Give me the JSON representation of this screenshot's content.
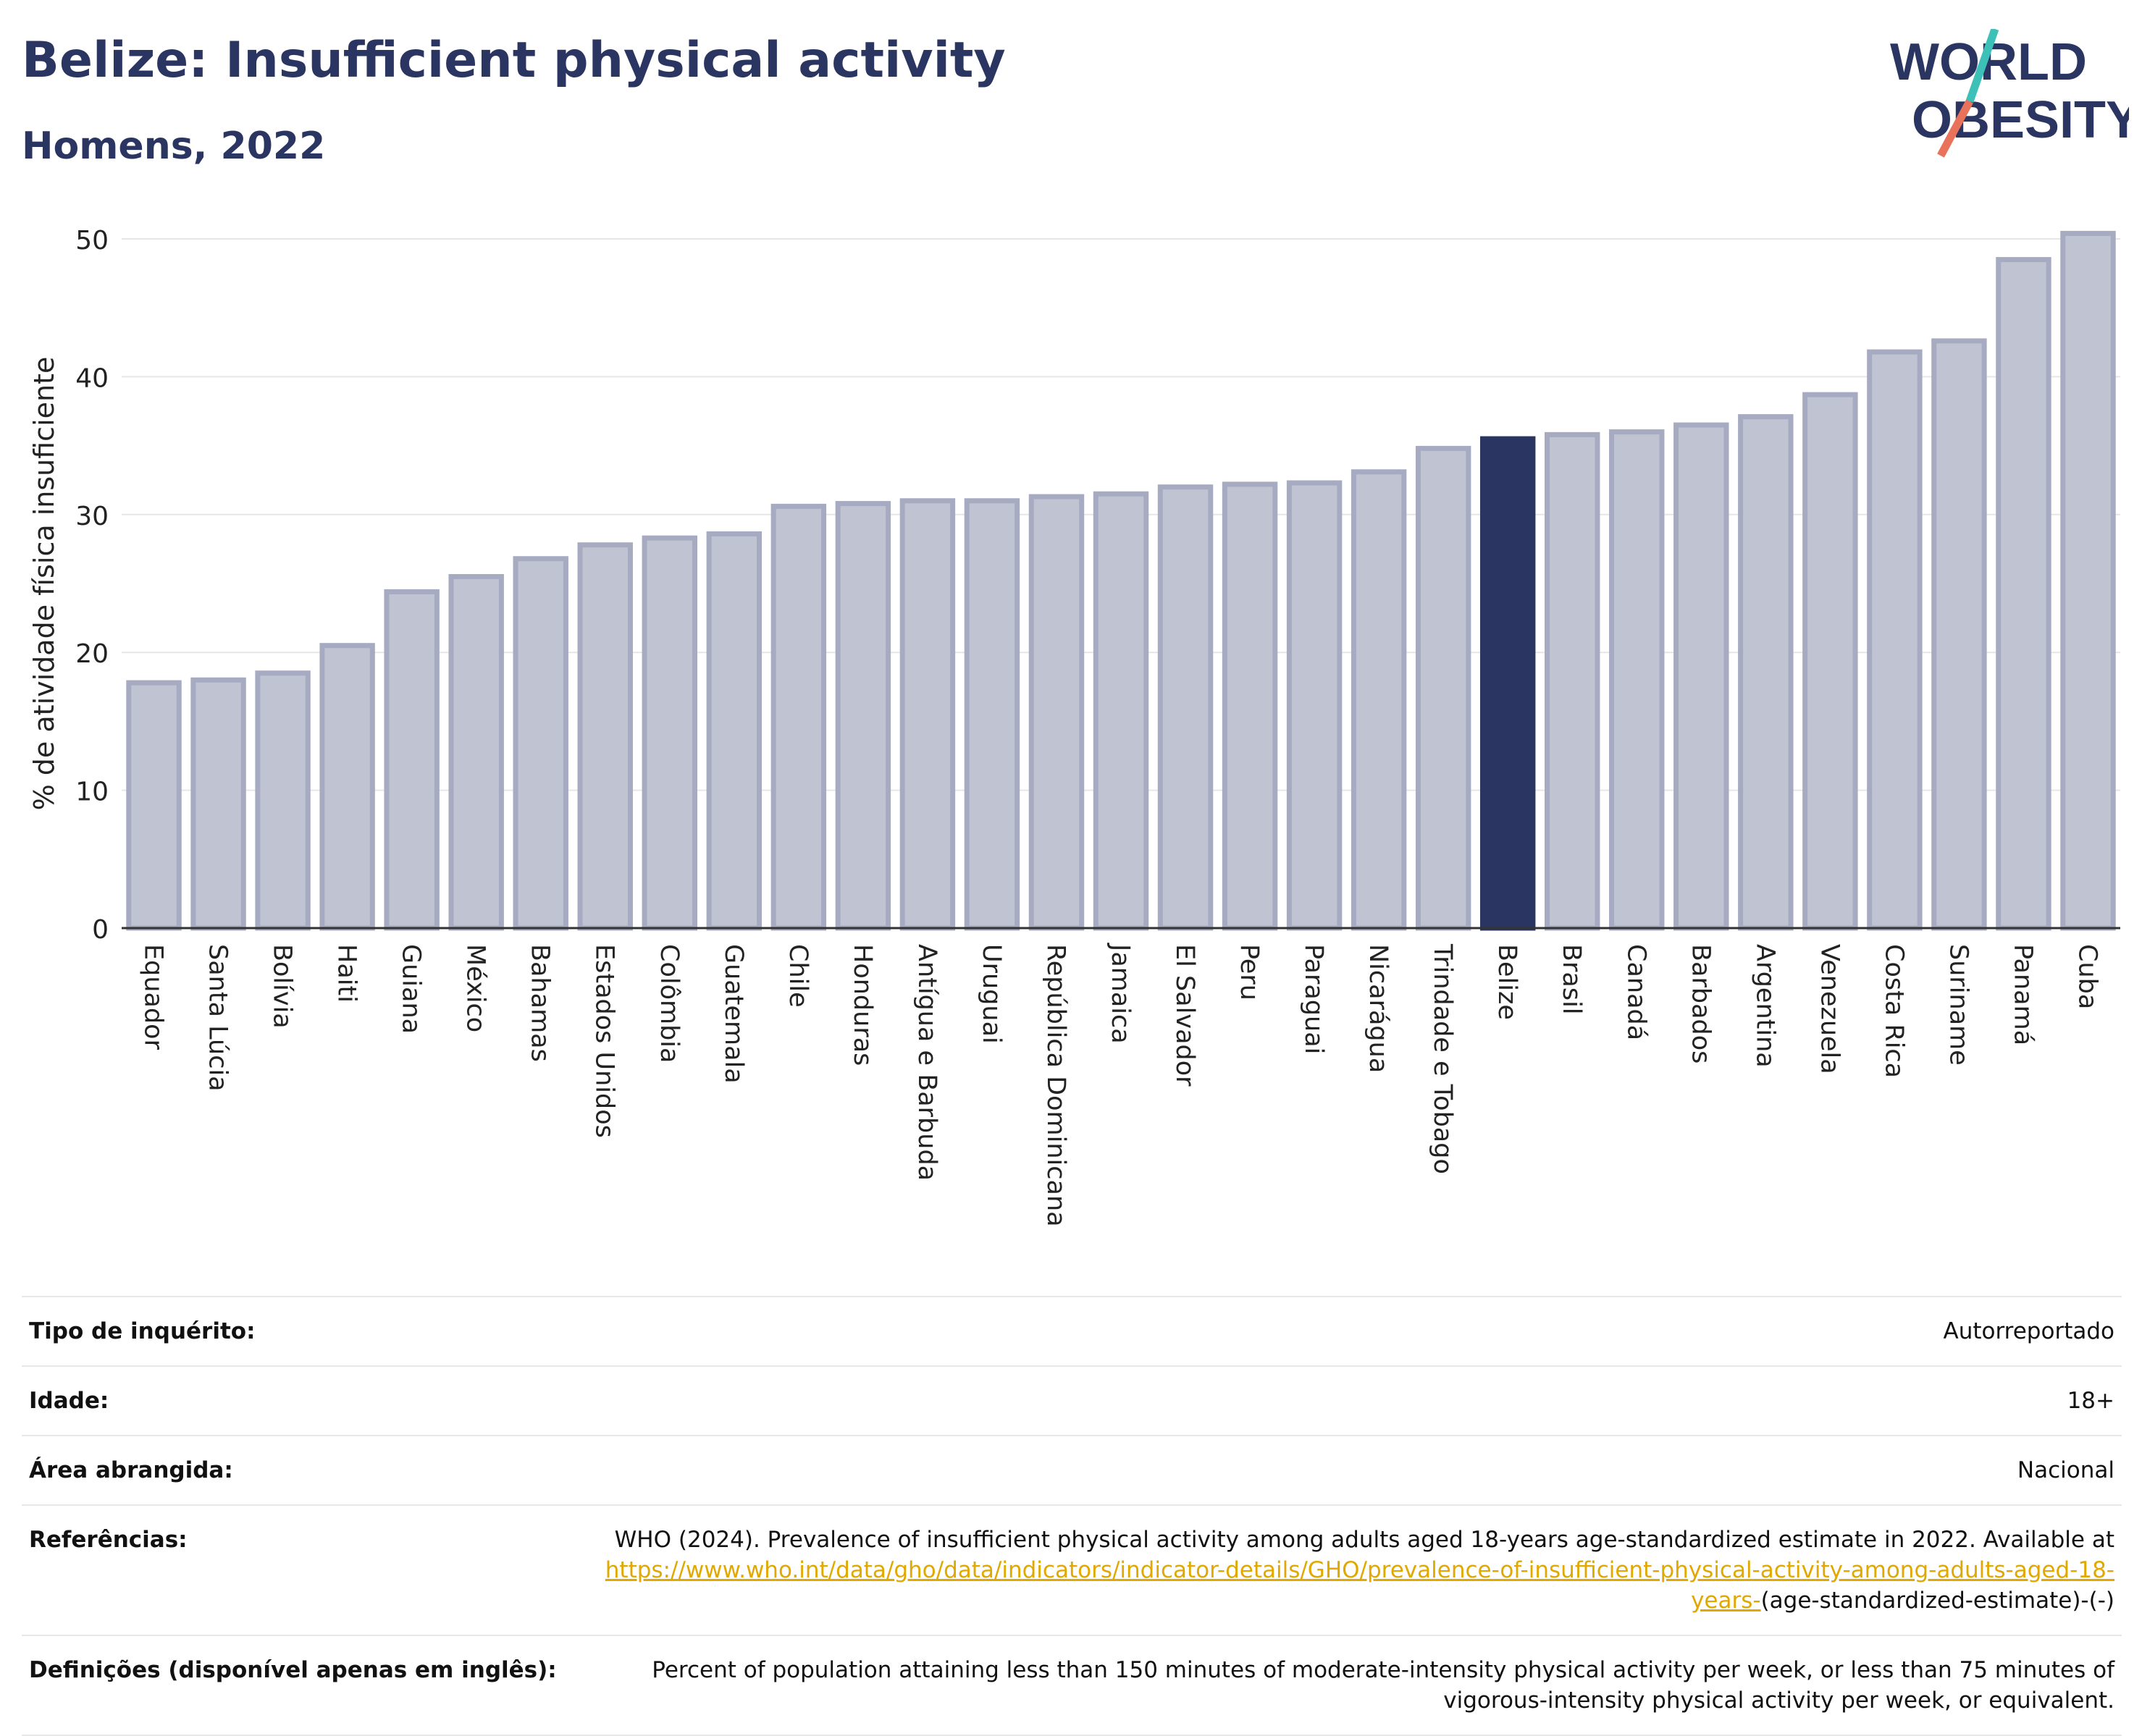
{
  "header": {
    "title": "Belize: Insufficient physical activity",
    "subtitle": "Homens, 2022",
    "logo_line1": "WORLD",
    "logo_line2": "OBESITY"
  },
  "colors": {
    "bar": "#c0c3d1",
    "bar_edge": "#a7abc2",
    "highlight": "#2b3562",
    "logo_teal": "#3cc0b8",
    "logo_coral": "#e8725a",
    "link": "#e0a800"
  },
  "chart_data": {
    "type": "bar",
    "ylabel": "% de atividade física insuficiente",
    "ylim": [
      0,
      50
    ],
    "yticks": [
      0,
      10,
      20,
      30,
      40,
      50
    ],
    "grid": true,
    "highlight": "Belize",
    "categories": [
      "Equador",
      "Santa Lúcia",
      "Bolívia",
      "Haiti",
      "Guiana",
      "México",
      "Bahamas",
      "Estados Unidos",
      "Colômbia",
      "Guatemala",
      "Chile",
      "Honduras",
      "Antígua e Barbuda",
      "Uruguai",
      "República Dominicana",
      "Jamaica",
      "El Salvador",
      "Peru",
      "Paraguai",
      "Nicarágua",
      "Trindade e Tobago",
      "Belize",
      "Brasil",
      "Canadá",
      "Barbados",
      "Argentina",
      "Venezuela",
      "Costa Rica",
      "Suriname",
      "Panamá",
      "Cuba"
    ],
    "values": [
      17.8,
      18.0,
      18.5,
      20.5,
      24.4,
      25.5,
      26.8,
      27.8,
      28.3,
      28.6,
      30.6,
      30.8,
      31.0,
      31.0,
      31.3,
      31.5,
      32.0,
      32.2,
      32.3,
      33.1,
      34.8,
      35.5,
      35.8,
      36.0,
      36.5,
      37.1,
      38.7,
      41.8,
      42.6,
      48.5,
      50.4
    ]
  },
  "meta": {
    "survey_label": "Tipo de inquérito:",
    "survey_value": "Autorreportado",
    "age_label": "Idade:",
    "age_value": "18+",
    "area_label": "Área abrangida:",
    "area_value": "Nacional",
    "ref_label": "Referências:",
    "ref_text": "WHO (2024). Prevalence of insufficient physical activity among adults aged 18-years age-standardized estimate in 2022. Available at",
    "ref_link": "https://www.who.int/data/gho/data/indicators/indicator-details/GHO/prevalence-of-insufficient-physical-activity-among-adults-aged-18-years-",
    "ref_tail": "(age-standardized-estimate)-(-)",
    "def_label": "Definições (disponível apenas em inglês):",
    "def_value": "Percent of population attaining less than 150 minutes of moderate-intensity physical activity per week, or less than 75 minutes of vigorous-intensity physical activity per week, or equivalent."
  }
}
